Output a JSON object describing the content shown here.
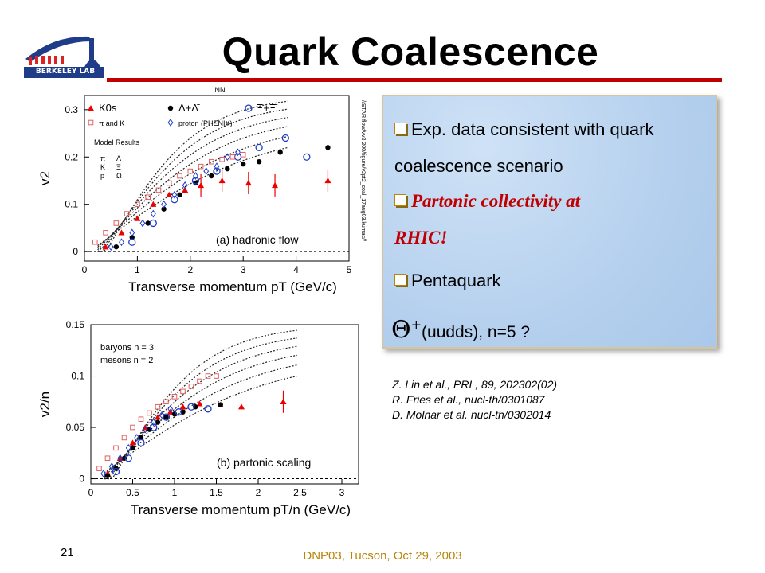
{
  "logo": {
    "text": "BERKELEY LAB"
  },
  "title": "Quark Coalescence",
  "bullets": {
    "b1_line1": "Exp. data consistent with quark",
    "b1_line2": "coalescence scenario",
    "b2_line1": "Partonic collectivity at",
    "b2_line2": "RHIC!",
    "b3": "Pentaquark",
    "theta_symbol": "Θ",
    "theta_sup": "+",
    "theta_rest": "(uudds), n=5 ?"
  },
  "references": [
    "Z. Lin et al., PRL, 89, 202302(02)",
    "R. Fries et al., nucl-th/0301087",
    "D. Molnar et al. nucl-th/0302014"
  ],
  "footer": {
    "page_number": "21",
    "conference": "DNP03, Tucson, Oct 29, 2003"
  },
  "colors": {
    "title_rule": "#c00000",
    "partonic_text": "#c00000",
    "footer_text": "#b8860b",
    "box_bg": "#b9d5f0"
  },
  "chart_data": [
    {
      "type": "scatter",
      "title": "(a) hadronic flow",
      "top_label": "NN",
      "xlabel": "Transverse momentum p_T (GeV/c)",
      "ylabel": "v_2",
      "xlim": [
        0,
        5
      ],
      "ylim": [
        -0.02,
        0.33
      ],
      "xticks": [
        "0",
        "1",
        "2",
        "3",
        "4",
        "5"
      ],
      "yticks": [
        "0",
        "0.1",
        "0.2",
        "0.3"
      ],
      "ytick_values": [
        0,
        0.1,
        0.2,
        0.3
      ],
      "legend": [
        "K0s",
        "Λ+Λ̄",
        "Ξ+Ξ̄",
        "π and K",
        "proton (PHENIX)"
      ],
      "model_label": "Model Results",
      "model_species": [
        "π",
        "Λ",
        "K",
        "Ξ",
        "p",
        "Ω"
      ],
      "side_text": "//STAR flow/Vv2 200/figure/v2pt2_coal_17aug03.kumac//",
      "series": [
        {
          "name": "K0s",
          "x": [
            0.4,
            0.7,
            1.0,
            1.3,
            1.6,
            1.9,
            2.2,
            2.6,
            3.1,
            3.6,
            4.6
          ],
          "y": [
            0.01,
            0.04,
            0.07,
            0.1,
            0.12,
            0.13,
            0.14,
            0.15,
            0.145,
            0.14,
            0.15
          ]
        },
        {
          "name": "Λ+Λ̄",
          "x": [
            0.6,
            0.9,
            1.2,
            1.5,
            1.8,
            2.1,
            2.4,
            2.7,
            3.0,
            3.3,
            3.7,
            4.6
          ],
          "y": [
            0.01,
            0.03,
            0.06,
            0.09,
            0.12,
            0.145,
            0.16,
            0.175,
            0.185,
            0.19,
            0.21,
            0.22
          ]
        },
        {
          "name": "Ξ+Ξ̄",
          "x": [
            0.9,
            1.3,
            1.7,
            2.1,
            2.5,
            2.9,
            3.3,
            3.8,
            4.2
          ],
          "y": [
            0.02,
            0.06,
            0.11,
            0.15,
            0.17,
            0.2,
            0.22,
            0.24,
            0.2
          ]
        },
        {
          "name": "π and K",
          "x": [
            0.2,
            0.4,
            0.6,
            0.8,
            1.0,
            1.2,
            1.4,
            1.6,
            1.8,
            2.0,
            2.2,
            2.4,
            2.6,
            2.8,
            3.0
          ],
          "y": [
            0.02,
            0.04,
            0.06,
            0.08,
            0.1,
            0.115,
            0.13,
            0.145,
            0.16,
            0.17,
            0.18,
            0.19,
            0.195,
            0.2,
            0.205
          ]
        },
        {
          "name": "proton (PHENIX)",
          "x": [
            0.5,
            0.7,
            0.9,
            1.1,
            1.3,
            1.5,
            1.7,
            1.9,
            2.1,
            2.3,
            2.5,
            2.7,
            2.9
          ],
          "y": [
            0.01,
            0.02,
            0.04,
            0.06,
            0.08,
            0.1,
            0.12,
            0.14,
            0.16,
            0.17,
            0.18,
            0.2,
            0.21
          ]
        }
      ]
    },
    {
      "type": "scatter",
      "title": "(b) partonic scaling",
      "xlabel": "Transverse momentum p_T/n (GeV/c)",
      "ylabel": "v_2/n",
      "xlim": [
        0,
        3.2
      ],
      "ylim": [
        -0.005,
        0.15
      ],
      "xticks": [
        "0",
        "0.5",
        "1",
        "1.5",
        "2",
        "2.5",
        "3"
      ],
      "yticks": [
        "0",
        "0.05",
        "0.1",
        "0.15"
      ],
      "ytick_values": [
        0,
        0.05,
        0.1,
        0.15
      ],
      "legend": [
        "baryons n = 3",
        "mesons n = 2"
      ],
      "series": [
        {
          "name": "K0s",
          "x": [
            0.2,
            0.35,
            0.5,
            0.65,
            0.8,
            0.95,
            1.1,
            1.3,
            1.55,
            1.8,
            2.3
          ],
          "y": [
            0.005,
            0.02,
            0.035,
            0.05,
            0.06,
            0.065,
            0.07,
            0.073,
            0.072,
            0.07,
            0.075
          ]
        },
        {
          "name": "Λ+Λ̄",
          "x": [
            0.2,
            0.3,
            0.4,
            0.5,
            0.6,
            0.7,
            0.8,
            0.9,
            1.0,
            1.1,
            1.25,
            1.55
          ],
          "y": [
            0.003,
            0.01,
            0.02,
            0.03,
            0.04,
            0.048,
            0.055,
            0.06,
            0.063,
            0.065,
            0.07,
            0.072
          ]
        },
        {
          "name": "Ξ+Ξ̄",
          "x": [
            0.3,
            0.45,
            0.6,
            0.75,
            0.9,
            1.05,
            1.2,
            1.4
          ],
          "y": [
            0.007,
            0.02,
            0.035,
            0.05,
            0.06,
            0.065,
            0.07,
            0.068
          ]
        },
        {
          "name": "π and K",
          "x": [
            0.1,
            0.2,
            0.3,
            0.4,
            0.5,
            0.6,
            0.7,
            0.8,
            0.9,
            1.0,
            1.1,
            1.2,
            1.3,
            1.4,
            1.5
          ],
          "y": [
            0.01,
            0.02,
            0.03,
            0.04,
            0.05,
            0.058,
            0.064,
            0.07,
            0.075,
            0.08,
            0.085,
            0.09,
            0.095,
            0.1,
            0.1
          ]
        },
        {
          "name": "proton (PHENIX)",
          "x": [
            0.15,
            0.25,
            0.35,
            0.45,
            0.55,
            0.65,
            0.75,
            0.85,
            0.95
          ],
          "y": [
            0.005,
            0.012,
            0.02,
            0.03,
            0.04,
            0.048,
            0.055,
            0.062,
            0.068
          ]
        }
      ]
    }
  ]
}
